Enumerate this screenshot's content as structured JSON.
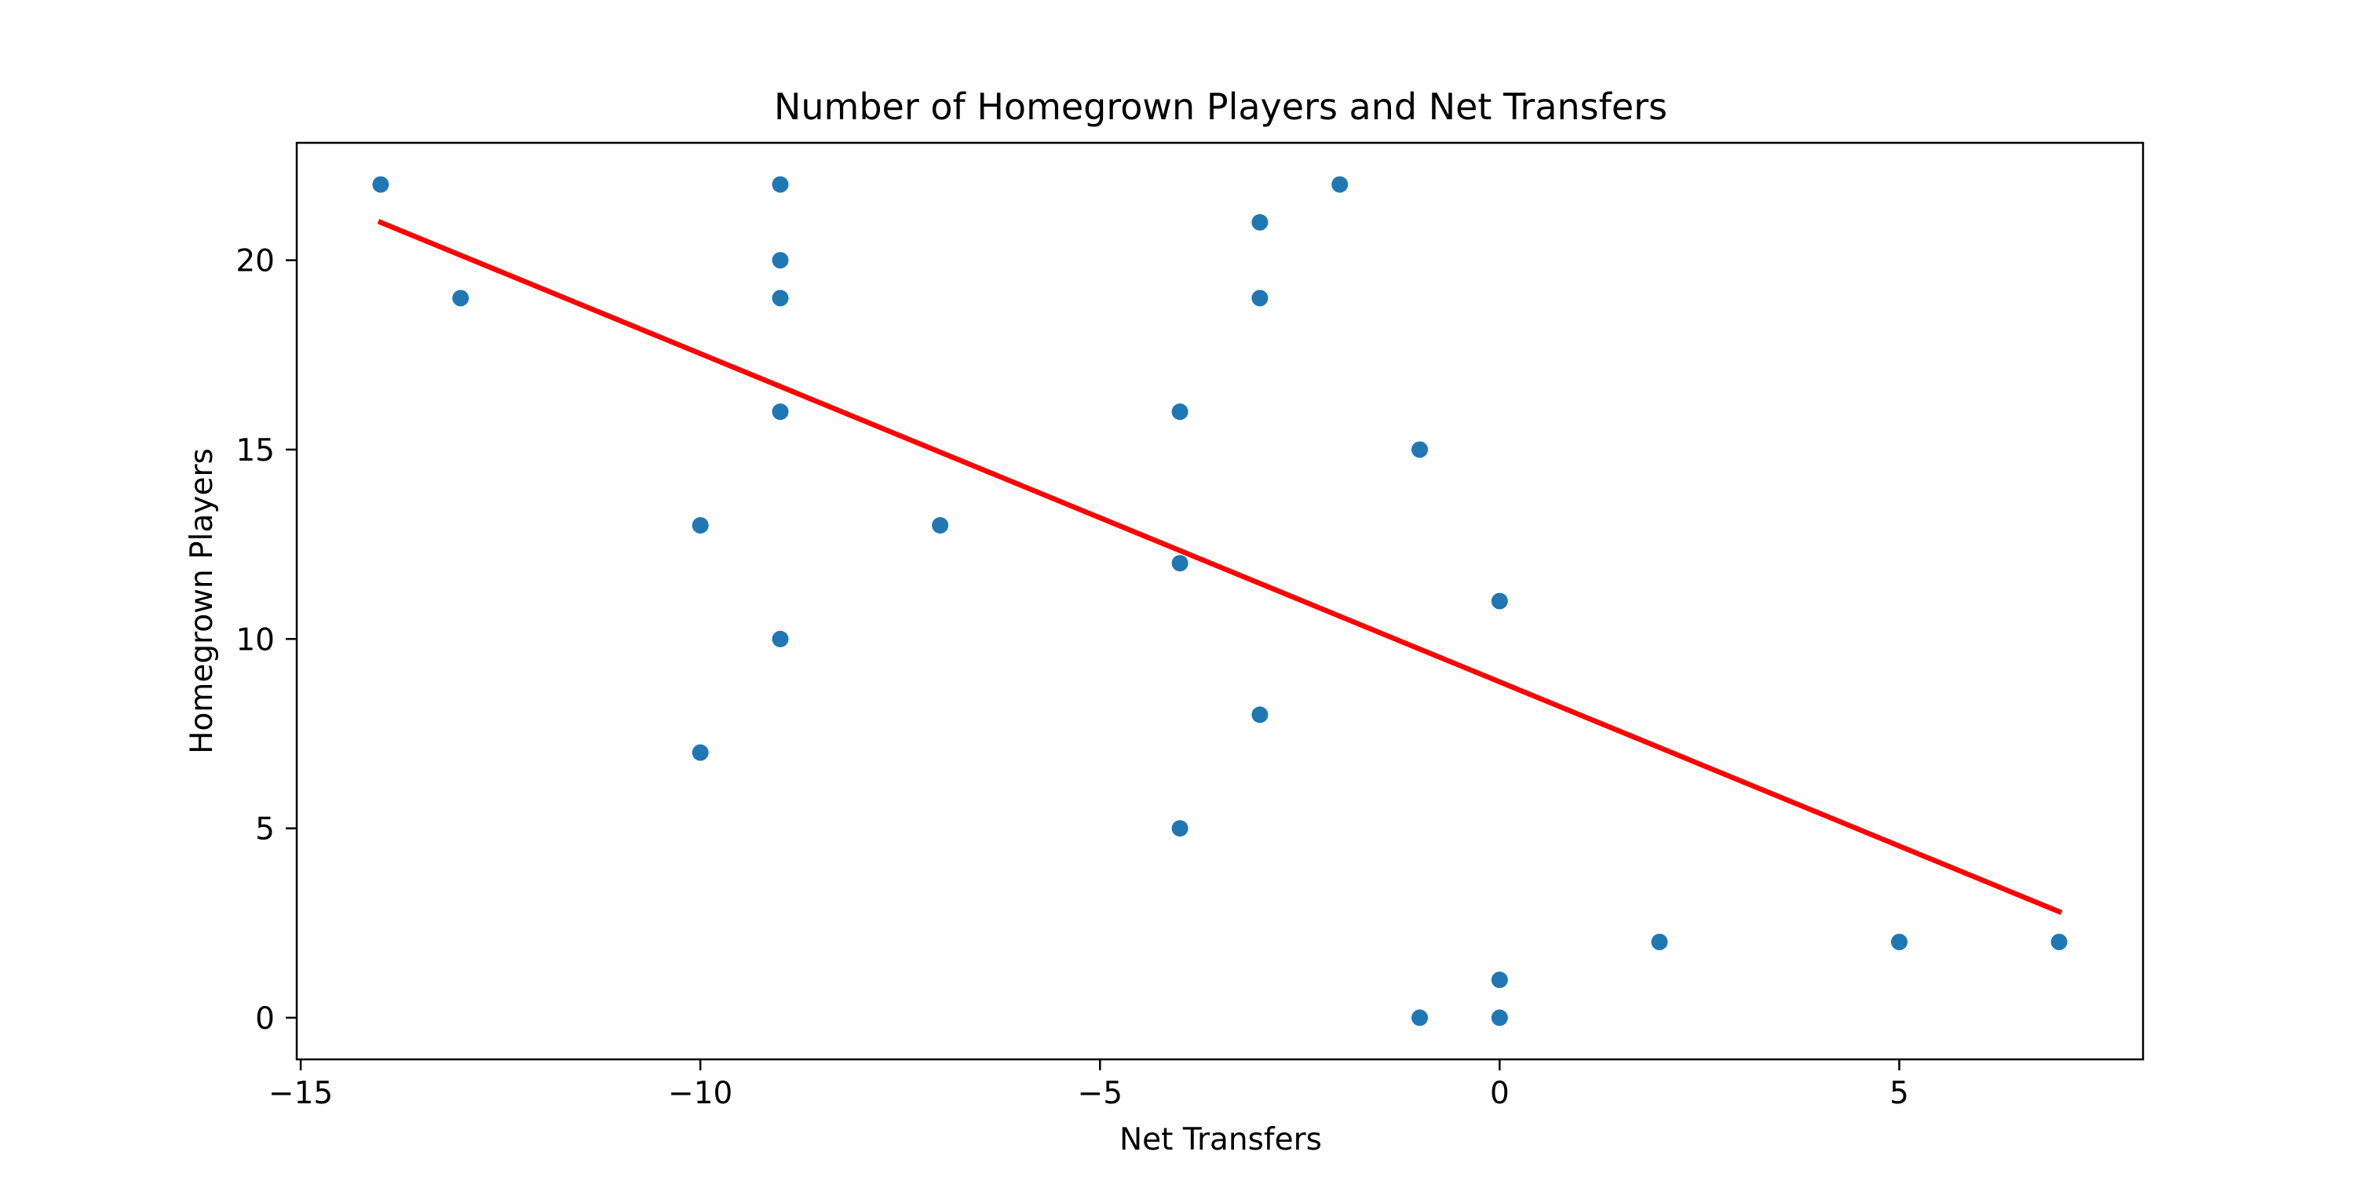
{
  "chart_data": {
    "type": "scatter",
    "title": "Number of Homegrown Players and Net Transfers",
    "xlabel": "Net Transfers",
    "ylabel": "Homegrown Players",
    "xlim": [
      -15.05,
      8.05
    ],
    "ylim": [
      -1.1,
      23.1
    ],
    "xticks": [
      -15,
      -10,
      -5,
      0,
      5
    ],
    "xtick_labels": [
      "−15",
      "−10",
      "−5",
      "0",
      "5"
    ],
    "yticks": [
      0,
      5,
      10,
      15,
      20
    ],
    "ytick_labels": [
      "0",
      "5",
      "10",
      "15",
      "20"
    ],
    "grid": false,
    "series": [
      {
        "type": "scatter",
        "color": "#1f77b4",
        "points": [
          {
            "x": -14,
            "y": 22
          },
          {
            "x": -13,
            "y": 19
          },
          {
            "x": -10,
            "y": 13
          },
          {
            "x": -10,
            "y": 7
          },
          {
            "x": -9,
            "y": 22
          },
          {
            "x": -9,
            "y": 20
          },
          {
            "x": -9,
            "y": 19
          },
          {
            "x": -9,
            "y": 16
          },
          {
            "x": -9,
            "y": 10
          },
          {
            "x": -7,
            "y": 13
          },
          {
            "x": -4,
            "y": 16
          },
          {
            "x": -4,
            "y": 12
          },
          {
            "x": -4,
            "y": 5
          },
          {
            "x": -3,
            "y": 21
          },
          {
            "x": -3,
            "y": 19
          },
          {
            "x": -3,
            "y": 8
          },
          {
            "x": -2,
            "y": 22
          },
          {
            "x": -1,
            "y": 15
          },
          {
            "x": -1,
            "y": 0
          },
          {
            "x": 0,
            "y": 11
          },
          {
            "x": 0,
            "y": 1
          },
          {
            "x": 0,
            "y": 0
          },
          {
            "x": 2,
            "y": 2
          },
          {
            "x": 5,
            "y": 2
          },
          {
            "x": 7,
            "y": 2
          }
        ]
      },
      {
        "type": "line",
        "color": "#ff0000",
        "points": [
          {
            "x": -14,
            "y": 21.0
          },
          {
            "x": 7,
            "y": 2.8
          }
        ]
      }
    ]
  }
}
